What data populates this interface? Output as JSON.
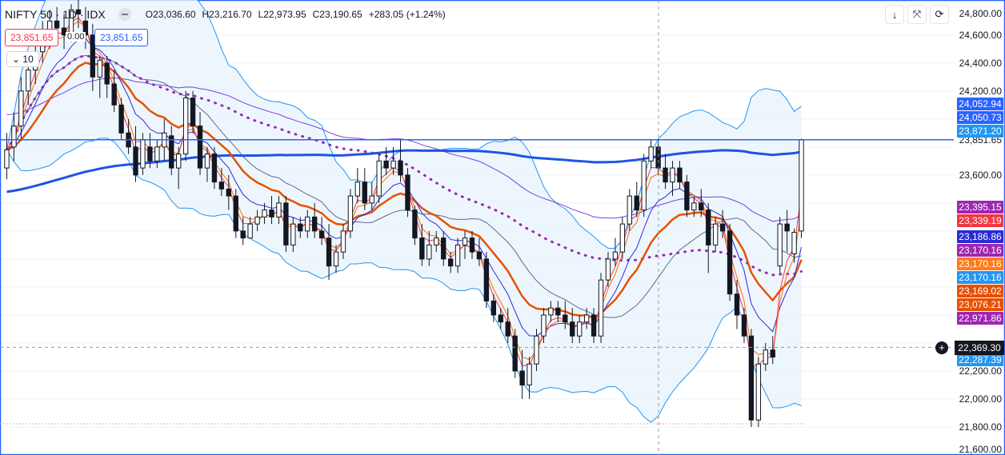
{
  "legend": {
    "symbol": "NIFTY 50 · 1D · IDX",
    "open": "O23,036.60",
    "high": "H23,216.70",
    "low": "L22,973.95",
    "close": "C23,190.65",
    "change": "+283.05 (+1.24%)"
  },
  "order": {
    "sell_price": "23,851.65",
    "buy_price": "23,851.65",
    "spread": "0.00",
    "quantity": "10"
  },
  "toolbar": {
    "icons": [
      "arrow-down-icon",
      "collapse-icon",
      "refresh-icon"
    ],
    "arrow_glyph": "↓",
    "collapse_glyph": "⤧",
    "refresh_glyph": "⟳"
  },
  "price_axis": {
    "ticks": [
      "24,800.00",
      "24,600.00",
      "24,400.00",
      "24,200.00",
      "23,851.65",
      "23,600.00",
      "22,200.00",
      "22,000.00",
      "21,800.00",
      "21,600.00"
    ],
    "crosshair_price": "22,369.30",
    "last_price": "23,851.65"
  },
  "indicator_tags": [
    {
      "value": "24,052.94",
      "color": "#2962ff"
    },
    {
      "value": "24,050.73",
      "color": "#2962ff"
    },
    {
      "value": "23,871.20",
      "color": "#2196f3"
    },
    {
      "value": "23,395.15",
      "color": "#9c27b0"
    },
    {
      "value": "23,339.19",
      "color": "#f23645"
    },
    {
      "value": "23,186.86",
      "color": "#2a2ad8"
    },
    {
      "value": "23,170.16",
      "color": "#9c27b0"
    },
    {
      "value": "23,170.16",
      "color": "#ff7a1a"
    },
    {
      "value": "23,170.16",
      "color": "#2196f3"
    },
    {
      "value": "23,169.02",
      "color": "#e65100"
    },
    {
      "value": "23,076.21",
      "color": "#e65100"
    },
    {
      "value": "22,971.86",
      "color": "#9c27b0"
    },
    {
      "value": "22,287.39",
      "color": "#2196f3"
    }
  ],
  "colors": {
    "up": "#ffffff",
    "down": "#131722",
    "bb_fill": "#eaf4fc",
    "bb_line": "#2196f3",
    "ema_thick_blue": "#1e53e5",
    "ema_purple": "#7b3fe4",
    "ema_orange_thick": "#e65100",
    "ema_orange": "#ff6d00",
    "ema_red": "#f23645",
    "ema_navy": "#2a2ad8",
    "bb_mid": "#5d6b8a",
    "dotted": "#9c27b0",
    "last_price_line": "#2962ff"
  },
  "chart_data": {
    "type": "candlestick",
    "ylim": [
      21600,
      24850
    ],
    "last_price": 23851.65,
    "crosshair_price": 22369.3,
    "candles": [
      [
        23650,
        23900,
        23570,
        23780
      ],
      [
        23800,
        24050,
        23700,
        23950
      ],
      [
        23950,
        24300,
        23850,
        24200
      ],
      [
        24200,
        24450,
        24100,
        24350
      ],
      [
        24350,
        24550,
        24250,
        24480
      ],
      [
        24480,
        24700,
        24400,
        24600
      ],
      [
        24600,
        24780,
        24500,
        24700
      ],
      [
        24700,
        24800,
        24550,
        24650
      ],
      [
        24650,
        24750,
        24500,
        24600
      ],
      [
        24600,
        24820,
        24550,
        24780
      ],
      [
        24780,
        24850,
        24650,
        24750
      ],
      [
        24700,
        24800,
        24500,
        24600
      ],
      [
        24600,
        24680,
        24200,
        24300
      ],
      [
        24300,
        24450,
        24150,
        24420
      ],
      [
        24400,
        24450,
        24150,
        24250
      ],
      [
        24250,
        24350,
        24050,
        24100
      ],
      [
        24100,
        24150,
        23850,
        23900
      ],
      [
        23900,
        24000,
        23750,
        23800
      ],
      [
        23800,
        23950,
        23550,
        23600
      ],
      [
        23650,
        23900,
        23600,
        23850
      ],
      [
        23800,
        23900,
        23650,
        23700
      ],
      [
        23700,
        23850,
        23650,
        23800
      ],
      [
        23800,
        24000,
        23700,
        23900
      ],
      [
        23880,
        23950,
        23600,
        23650
      ],
      [
        23650,
        23800,
        23500,
        23750
      ],
      [
        23750,
        24200,
        23700,
        24150
      ],
      [
        24150,
        24200,
        23900,
        23950
      ],
      [
        23950,
        24050,
        23600,
        23650
      ],
      [
        23650,
        23800,
        23550,
        23750
      ],
      [
        23750,
        23800,
        23500,
        23550
      ],
      [
        23550,
        23650,
        23450,
        23500
      ],
      [
        23500,
        23600,
        23350,
        23450
      ],
      [
        23450,
        23500,
        23150,
        23200
      ],
      [
        23200,
        23300,
        23100,
        23150
      ],
      [
        23150,
        23300,
        23150,
        23250
      ],
      [
        23250,
        23350,
        23200,
        23300
      ],
      [
        23300,
        23400,
        23250,
        23350
      ],
      [
        23350,
        23450,
        23250,
        23300
      ],
      [
        23300,
        23450,
        23250,
        23400
      ],
      [
        23400,
        23450,
        23050,
        23100
      ],
      [
        23100,
        23300,
        23050,
        23250
      ],
      [
        23250,
        23300,
        23150,
        23200
      ],
      [
        23200,
        23350,
        23150,
        23300
      ],
      [
        23300,
        23400,
        23150,
        23200
      ],
      [
        23200,
        23300,
        23100,
        23150
      ],
      [
        23150,
        23250,
        22850,
        22950
      ],
      [
        22950,
        23100,
        22900,
        23050
      ],
      [
        23050,
        23250,
        23000,
        23200
      ],
      [
        23200,
        23500,
        23150,
        23450
      ],
      [
        23450,
        23650,
        23400,
        23550
      ],
      [
        23550,
        23650,
        23350,
        23400
      ],
      [
        23400,
        23550,
        23350,
        23450
      ],
      [
        23450,
        23750,
        23400,
        23700
      ],
      [
        23700,
        23800,
        23600,
        23650
      ],
      [
        23650,
        23800,
        23600,
        23700
      ],
      [
        23700,
        23850,
        23550,
        23600
      ],
      [
        23600,
        23650,
        23300,
        23350
      ],
      [
        23350,
        23380,
        23100,
        23150
      ],
      [
        23150,
        23250,
        22950,
        23000
      ],
      [
        23000,
        23200,
        22950,
        23100
      ],
      [
        23100,
        23200,
        23050,
        23150
      ],
      [
        23150,
        23200,
        22950,
        23000
      ],
      [
        23000,
        23050,
        22900,
        22950
      ],
      [
        22950,
        23150,
        22900,
        23100
      ],
      [
        23100,
        23200,
        23000,
        23150
      ],
      [
        23150,
        23200,
        23000,
        23050
      ],
      [
        23050,
        23150,
        22950,
        23000
      ],
      [
        23000,
        23050,
        22650,
        22700
      ],
      [
        22700,
        22750,
        22550,
        22600
      ],
      [
        22600,
        22650,
        22500,
        22550
      ],
      [
        22550,
        22650,
        22400,
        22450
      ],
      [
        22450,
        22500,
        22150,
        22200
      ],
      [
        22200,
        22350,
        22000,
        22100
      ],
      [
        22100,
        22300,
        22000,
        22250
      ],
      [
        22250,
        22500,
        22200,
        22450
      ],
      [
        22450,
        22650,
        22400,
        22600
      ],
      [
        22600,
        22700,
        22550,
        22650
      ],
      [
        22650,
        22700,
        22550,
        22600
      ],
      [
        22600,
        22700,
        22500,
        22550
      ],
      [
        22550,
        22650,
        22400,
        22450
      ],
      [
        22450,
        22600,
        22400,
        22550
      ],
      [
        22550,
        22650,
        22500,
        22600
      ],
      [
        22600,
        22650,
        22400,
        22450
      ],
      [
        22450,
        22900,
        22400,
        22850
      ],
      [
        22850,
        23050,
        22800,
        23000
      ],
      [
        23000,
        23150,
        22950,
        23050
      ],
      [
        23050,
        23300,
        23000,
        23250
      ],
      [
        23250,
        23500,
        23200,
        23450
      ],
      [
        23450,
        23550,
        23300,
        23350
      ],
      [
        23350,
        23750,
        23300,
        23700
      ],
      [
        23700,
        23850,
        23650,
        23800
      ],
      [
        23800,
        23850,
        23600,
        23650
      ],
      [
        23650,
        23750,
        23500,
        23550
      ],
      [
        23550,
        23700,
        23450,
        23650
      ],
      [
        23650,
        23700,
        23500,
        23550
      ],
      [
        23550,
        23600,
        23300,
        23350
      ],
      [
        23350,
        23450,
        23300,
        23400
      ],
      [
        23400,
        23500,
        23300,
        23350
      ],
      [
        23350,
        23400,
        22900,
        23100
      ],
      [
        23100,
        23300,
        23050,
        23250
      ],
      [
        23250,
        23350,
        23150,
        23200
      ],
      [
        23200,
        23250,
        22700,
        22750
      ],
      [
        22750,
        22850,
        22500,
        22600
      ],
      [
        22600,
        22650,
        22400,
        22450
      ],
      [
        22450,
        22500,
        21800,
        21850
      ],
      [
        21850,
        22300,
        21800,
        22250
      ],
      [
        22250,
        22400,
        22200,
        22350
      ],
      [
        22350,
        22450,
        22250,
        22300
      ],
      [
        22950,
        23300,
        22900,
        23250
      ],
      [
        23250,
        23350,
        23050,
        23200
      ],
      [
        23036.6,
        23216.7,
        22973.95,
        23190.65
      ],
      [
        23200,
        23860,
        23150,
        23850
      ]
    ]
  }
}
